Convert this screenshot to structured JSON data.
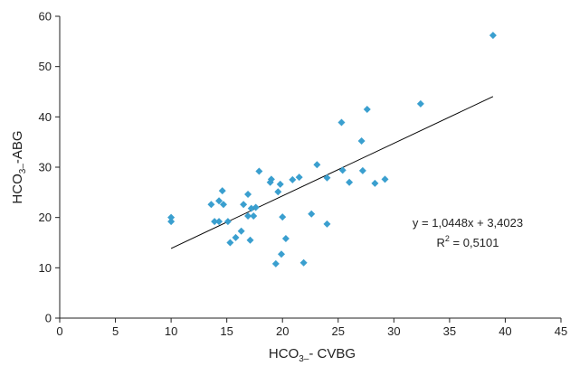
{
  "chart_data": {
    "type": "scatter",
    "title": "",
    "xlabel": {
      "pre": "HCO",
      "sub": "3–",
      "post": "- CVBG"
    },
    "ylabel": {
      "pre": "HCO",
      "sub": "3–",
      "post": "-ABG"
    },
    "xlim": [
      0,
      45
    ],
    "ylim": [
      0,
      60
    ],
    "x_ticks": [
      0,
      5,
      10,
      15,
      20,
      25,
      30,
      35,
      40,
      45
    ],
    "y_ticks": [
      0,
      10,
      20,
      30,
      40,
      50,
      60
    ],
    "grid": false,
    "legend": "none",
    "marker_color": "#3a9fcf",
    "line_color": "#000000",
    "series": [
      {
        "values": [
          [
            10.0,
            20.0
          ],
          [
            10.0,
            19.2
          ],
          [
            13.6,
            22.6
          ],
          [
            13.9,
            19.2
          ],
          [
            14.3,
            19.2
          ],
          [
            14.3,
            23.3
          ],
          [
            14.6,
            25.3
          ],
          [
            14.7,
            22.6
          ],
          [
            15.1,
            19.2
          ],
          [
            15.3,
            15.0
          ],
          [
            15.8,
            16.0
          ],
          [
            16.3,
            17.3
          ],
          [
            16.5,
            22.6
          ],
          [
            16.9,
            24.6
          ],
          [
            16.9,
            20.3
          ],
          [
            17.1,
            15.5
          ],
          [
            17.2,
            21.8
          ],
          [
            17.4,
            20.3
          ],
          [
            17.6,
            22.0
          ],
          [
            17.9,
            29.2
          ],
          [
            18.9,
            27.0
          ],
          [
            19.0,
            27.6
          ],
          [
            19.4,
            10.8
          ],
          [
            19.6,
            25.1
          ],
          [
            19.8,
            26.6
          ],
          [
            19.9,
            12.7
          ],
          [
            20.0,
            20.1
          ],
          [
            20.3,
            15.8
          ],
          [
            20.9,
            27.5
          ],
          [
            21.5,
            28.0
          ],
          [
            21.9,
            11.0
          ],
          [
            22.6,
            20.7
          ],
          [
            23.1,
            30.5
          ],
          [
            24.0,
            27.9
          ],
          [
            24.0,
            18.7
          ],
          [
            25.3,
            38.9
          ],
          [
            25.4,
            29.4
          ],
          [
            26.0,
            27.0
          ],
          [
            27.1,
            35.2
          ],
          [
            27.2,
            29.3
          ],
          [
            27.6,
            41.5
          ],
          [
            28.3,
            26.8
          ],
          [
            29.2,
            27.6
          ],
          [
            32.4,
            42.6
          ],
          [
            38.9,
            56.2
          ]
        ]
      }
    ],
    "trendline": {
      "slope": 1.0448,
      "intercept": 3.4023,
      "x_range": [
        10,
        38.9
      ],
      "equation": "y = 1,0448x + 3,4023",
      "r2": {
        "pre": "R",
        "sup": "2",
        "post": " = 0,5101"
      }
    }
  }
}
